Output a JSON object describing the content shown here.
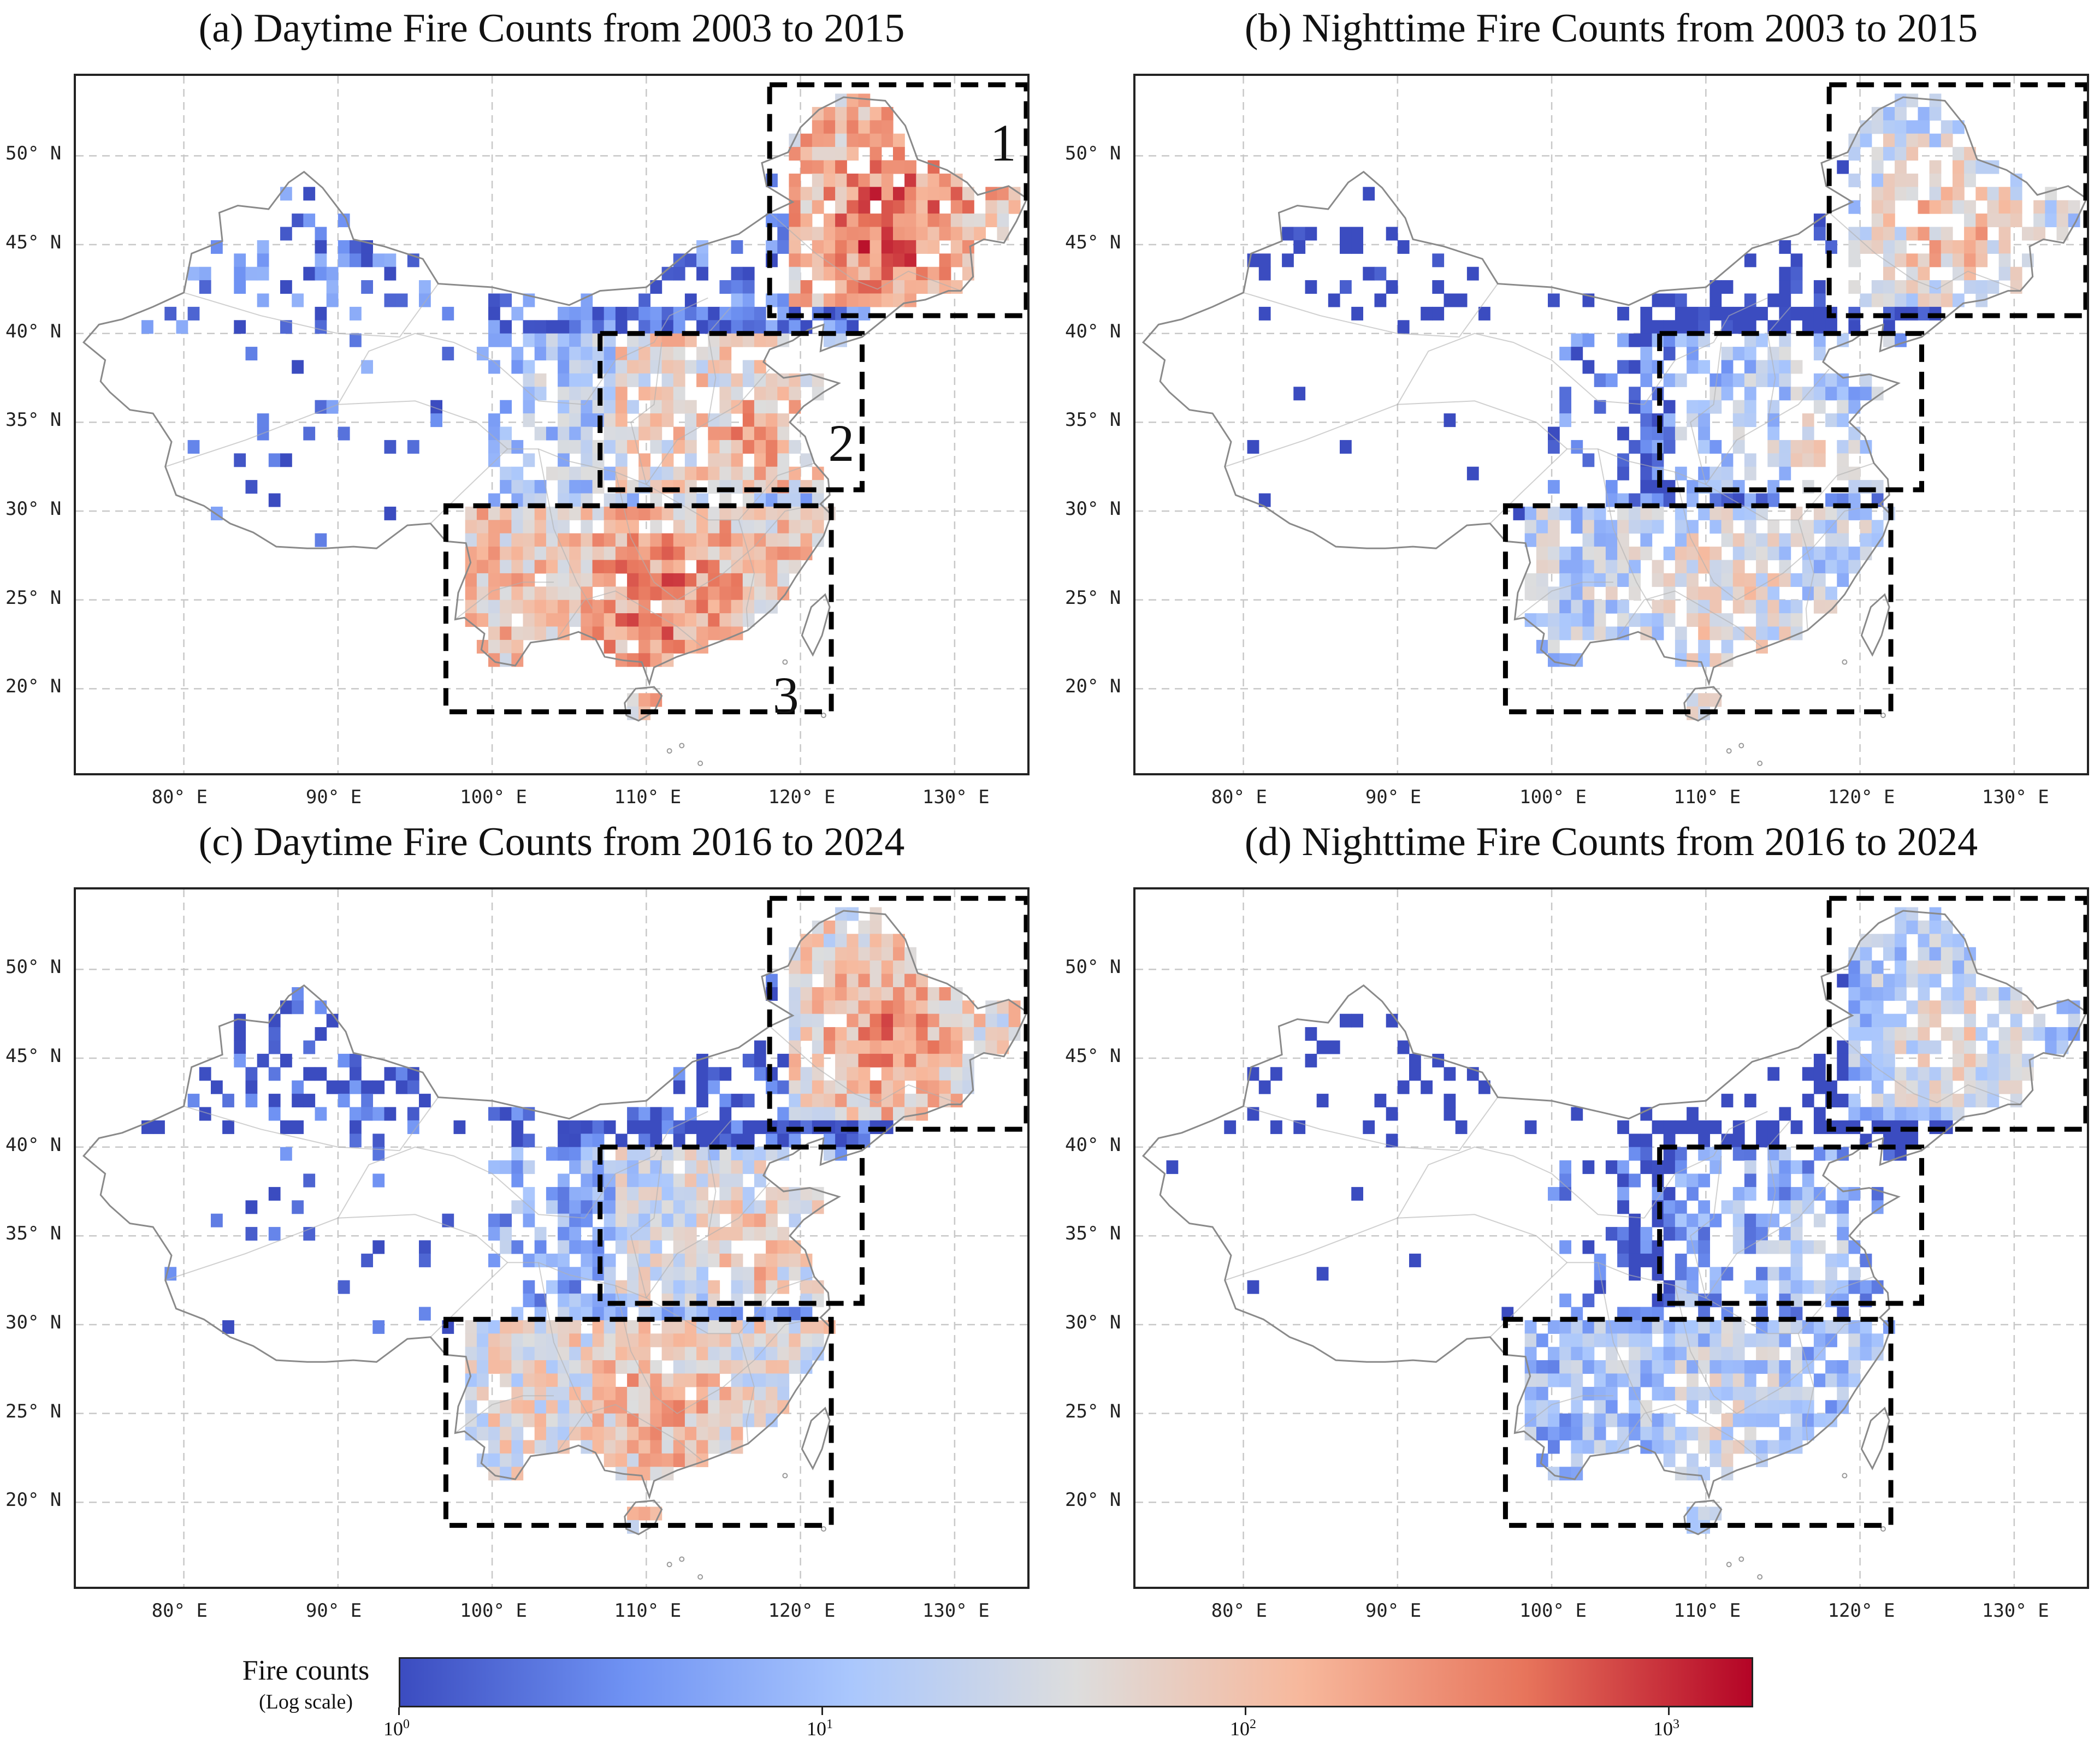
{
  "panels": [
    {
      "id": "a",
      "title": "(a) Daytime Fire Counts from 2003 to 2015",
      "box_labels": [
        "1",
        "2",
        "3"
      ]
    },
    {
      "id": "b",
      "title": "(b) Nighttime Fire Counts from 2003 to 2015",
      "box_labels": []
    },
    {
      "id": "c",
      "title": "(c) Daytime Fire Counts from 2016 to 2024",
      "box_labels": []
    },
    {
      "id": "d",
      "title": "(d) Nighttime Fire Counts from 2016 to 2024",
      "box_labels": []
    }
  ],
  "axes": {
    "lon_ticks": [
      "80° E",
      "90° E",
      "100° E",
      "110° E",
      "120° E",
      "130° E"
    ],
    "lon_values": [
      80,
      90,
      100,
      110,
      120,
      130
    ],
    "lat_ticks": [
      "50° N",
      "45° N",
      "40° N",
      "35° N",
      "30° N",
      "25° N",
      "20° N"
    ],
    "lat_values": [
      50,
      45,
      40,
      35,
      30,
      25,
      20
    ],
    "lon_range": [
      73,
      135
    ],
    "lat_range": [
      15,
      54.5
    ]
  },
  "regions": [
    {
      "label": "1",
      "lon": [
        118,
        135
      ],
      "lat": [
        41,
        54
      ]
    },
    {
      "label": "2",
      "lon": [
        107,
        124
      ],
      "lat": [
        31.2,
        40
      ]
    },
    {
      "label": "3",
      "lon": [
        97,
        122
      ],
      "lat": [
        18.7,
        30.3
      ]
    }
  ],
  "colorbar": {
    "title": "Fire counts",
    "subtitle": "(Log scale)",
    "ticks": [
      {
        "base": "10",
        "exp": "0"
      },
      {
        "base": "10",
        "exp": "1"
      },
      {
        "base": "10",
        "exp": "2"
      },
      {
        "base": "10",
        "exp": "3"
      }
    ],
    "colors": [
      "#3b4cc0",
      "#6f92f3",
      "#aac7fd",
      "#dddddd",
      "#f7b89c",
      "#e7745b",
      "#b40426"
    ]
  }
}
